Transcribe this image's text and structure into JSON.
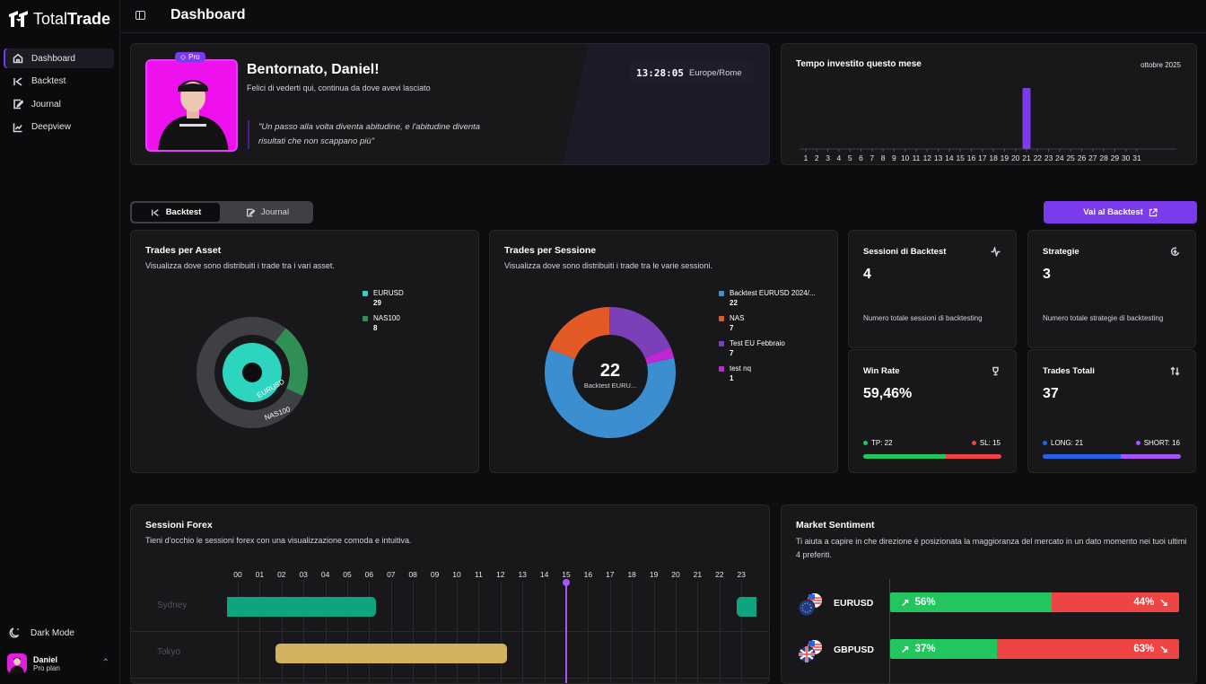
{
  "app": {
    "name_light": "Total",
    "name_bold": "Trade",
    "page_title": "Dashboard"
  },
  "sidebar": {
    "items": [
      {
        "label": "Dashboard",
        "icon": "home-icon",
        "active": true
      },
      {
        "label": "Backtest",
        "icon": "backtest-icon"
      },
      {
        "label": "Journal",
        "icon": "journal-icon"
      },
      {
        "label": "Deepview",
        "icon": "chart-icon"
      }
    ],
    "dark_mode_label": "Dark Mode",
    "user": {
      "name": "Daniel",
      "plan": "Pro plan"
    }
  },
  "welcome": {
    "badge": "Pro",
    "title": "Bentornato, Daniel!",
    "subtitle": "Felici di vederti qui, continua da dove avevi lasciato",
    "quote": "\"Un passo alla volta diventa abitudine, e l'abitudine diventa risultati che non scappano più\"",
    "time": "13:28:05",
    "timezone": "Europe/Rome"
  },
  "time_invested": {
    "title": "Tempo investito questo mese",
    "month": "ottobre 2025",
    "chart_data": {
      "type": "bar",
      "categories": [
        "1",
        "2",
        "3",
        "4",
        "5",
        "6",
        "7",
        "8",
        "9",
        "10",
        "11",
        "12",
        "13",
        "14",
        "15",
        "16",
        "17",
        "18",
        "19",
        "20",
        "21",
        "22",
        "23",
        "24",
        "25",
        "26",
        "27",
        "28",
        "29",
        "30",
        "31"
      ],
      "values": [
        0,
        0,
        0,
        0,
        0,
        0,
        0,
        0,
        0,
        0,
        0,
        0,
        0,
        0,
        0,
        0,
        0,
        0,
        0,
        0,
        1,
        0,
        0,
        0,
        0,
        0,
        0,
        0,
        0,
        0,
        0
      ],
      "color": "#7c3aed"
    }
  },
  "tabs": {
    "backtest": "Backtest",
    "journal": "Journal"
  },
  "cta": {
    "label": "Vai al Backtest"
  },
  "trades_per_asset": {
    "title": "Trades per Asset",
    "subtitle": "Visualizza dove sono distribuiti i trade tra i vari asset.",
    "chart_data": {
      "type": "pie",
      "categories": [
        "EURUSD",
        "NAS100"
      ],
      "values": [
        29,
        8
      ],
      "colors": [
        "#2dd4bf",
        "#2f8f55"
      ]
    }
  },
  "trades_per_session": {
    "title": "Trades per Sessione",
    "subtitle": "Visualizza dove sono distribuiti i trade tra le varie sessioni.",
    "center_value": "22",
    "center_label": "Backtest EURU...",
    "legend_first": "Backtest EURUSD 2024/...",
    "chart_data": {
      "type": "pie",
      "categories": [
        "Backtest EURUSD 2024/...",
        "NAS",
        "Test EU Febbraio",
        "test nq"
      ],
      "values": [
        22,
        7,
        7,
        1
      ],
      "colors": [
        "#3b8fd1",
        "#e35a26",
        "#7b3fb8",
        "#c026d3"
      ]
    }
  },
  "stats": {
    "sessions": {
      "title": "Sessioni di Backtest",
      "value": "4",
      "desc": "Numero totale sessioni di backtesting"
    },
    "strategies": {
      "title": "Strategie",
      "value": "3",
      "desc": "Numero totale strategie di backtesting"
    },
    "winrate": {
      "title": "Win Rate",
      "value": "59,46%",
      "tp_label": "TP: 22",
      "sl_label": "SL: 15",
      "tp": 22,
      "sl": 15,
      "tp_color": "#22c55e",
      "sl_color": "#ef4444"
    },
    "trades": {
      "title": "Trades Totali",
      "value": "37",
      "long_label": "LONG: 21",
      "short_label": "SHORT: 16",
      "long": 21,
      "short": 16,
      "long_color": "#2563eb",
      "short_color": "#a855f7"
    }
  },
  "forex": {
    "title": "Sessioni Forex",
    "subtitle": "Tieni d'occhio le sessioni forex con una visualizzazione comoda e intuitiva.",
    "hours": [
      "00",
      "01",
      "02",
      "03",
      "04",
      "05",
      "06",
      "07",
      "08",
      "09",
      "10",
      "11",
      "12",
      "13",
      "14",
      "15",
      "16",
      "17",
      "18",
      "19",
      "20",
      "21",
      "22",
      "23"
    ],
    "current_hour": 15,
    "sessions": [
      {
        "name": "Sydney",
        "start": 0,
        "end": 7,
        "color": "#0ea47f",
        "extra_start": 23
      },
      {
        "name": "Tokyo",
        "start": 2,
        "end": 13,
        "color": "#d4b061"
      }
    ]
  },
  "sentiment": {
    "title": "Market Sentiment",
    "subtitle": "Ti aiuta a capire in che direzione è posizionata la maggioranza del mercato in un dato momento nei tuoi ultimi 4 preferiti.",
    "rows": [
      {
        "pair": "EURUSD",
        "long": 56,
        "short": 44,
        "long_label": "56%",
        "short_label": "44%"
      },
      {
        "pair": "GBPUSD",
        "long": 37,
        "short": 63,
        "long_label": "37%",
        "short_label": "63%"
      }
    ]
  }
}
